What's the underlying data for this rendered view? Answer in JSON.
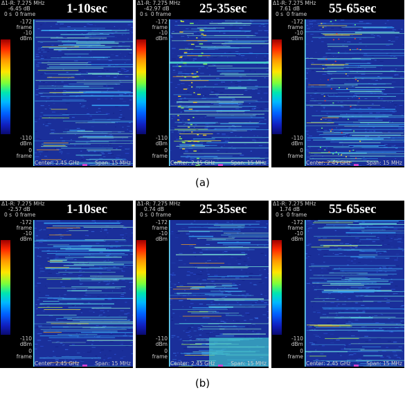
{
  "captions": [
    "(a)",
    "(b)"
  ],
  "axis": {
    "top_frame": "-172",
    "frame_label": "frame",
    "max_level": "-10",
    "unit": "dBm",
    "min_level": "-110",
    "bottom_frame": "0"
  },
  "footer": {
    "center": "Center: 2.45 GHz",
    "span": "Span: 15 MHz"
  },
  "colormap": [
    "#a00000",
    "#ff2a00",
    "#ff9a00",
    "#ffe600",
    "#7cff3a",
    "#00e6b0",
    "#00b8ff",
    "#0060ff",
    "#1020c0",
    "#0a0a70"
  ],
  "rows": [
    [
      {
        "title": "1-10sec",
        "marker": "Δ1-R: 7.275 MHz",
        "delta_db": "-6.45 dB",
        "time": "0 s  0 frame"
      },
      {
        "title": "25-35sec",
        "marker": "Δ1-R: 7.275 MHz",
        "delta_db": "-42.97 dB",
        "time": "0 s  0 frame"
      },
      {
        "title": "55-65sec",
        "marker": "Δ1-R: 7.275 MHz",
        "delta_db": "7.61 dB",
        "time": "0 s  0 frame"
      }
    ],
    [
      {
        "title": "1-10sec",
        "marker": "Δ1-R: 7.275 MHz",
        "delta_db": "-2.57 dB",
        "time": "0 s  0 frame"
      },
      {
        "title": "25-35sec",
        "marker": "Δ1-R: 7.275 MHz",
        "delta_db": "0.74 dB",
        "time": "0 s  0 frame"
      },
      {
        "title": "55-65sec",
        "marker": "Δ1-R: 7.275 MHz",
        "delta_db": "1.74 dB",
        "time": "0 s  0 frame"
      }
    ]
  ]
}
